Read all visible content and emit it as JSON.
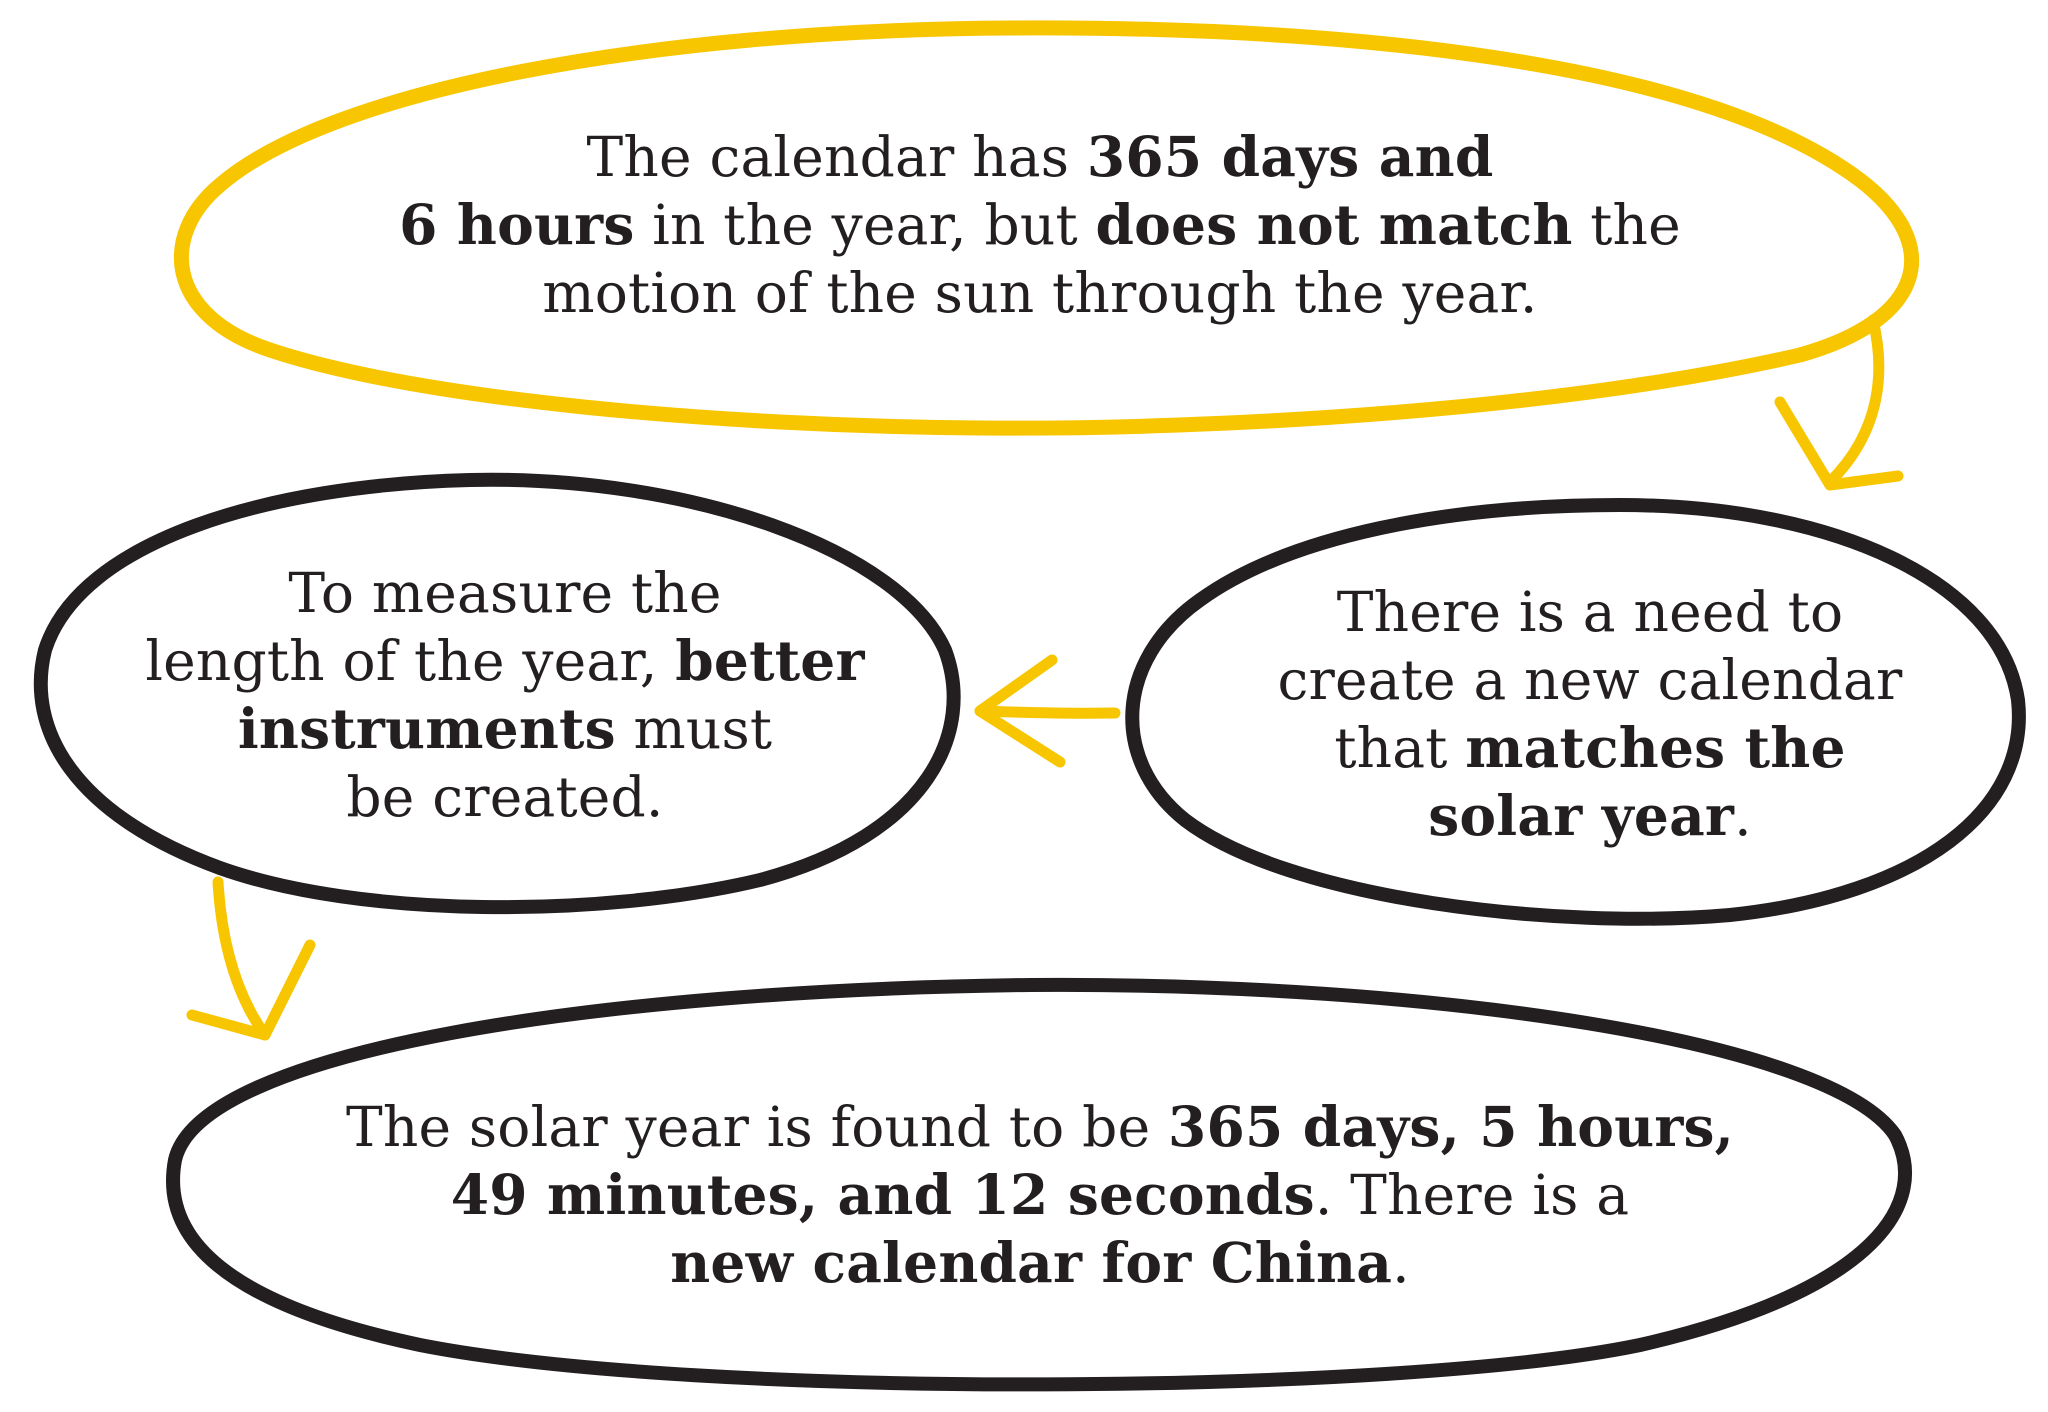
{
  "colors": {
    "accent_yellow": "#f7c600",
    "outline_black": "#231f20",
    "background": "#ffffff"
  },
  "nodes": {
    "top": {
      "line1": {
        "plain1": "The calendar has ",
        "bold1": "365 days and"
      },
      "line2": {
        "bold1": "6 hours",
        "plain1": " in the year, but ",
        "bold2": "does not match",
        "plain2": " the"
      },
      "line3": {
        "plain1": "motion of the sun through the year."
      }
    },
    "left": {
      "line1": {
        "plain1": "To measure the"
      },
      "line2": {
        "plain1": "length of the year, ",
        "bold1": "better"
      },
      "line3": {
        "bold1": "instruments",
        "plain1": " must"
      },
      "line4": {
        "plain1": "be created."
      }
    },
    "right": {
      "line1": {
        "plain1": "There is a need to"
      },
      "line2": {
        "plain1": "create a new calendar"
      },
      "line3": {
        "plain1": "that ",
        "bold1": "matches the"
      },
      "line4": {
        "bold1": "solar year",
        "plain1": "."
      }
    },
    "bottom": {
      "line1": {
        "plain1": "The solar year is found to be ",
        "bold1": "365 days, 5 hours,"
      },
      "line2": {
        "bold1": "49 minutes, and 12 seconds",
        "plain1": ". There is a"
      },
      "line3": {
        "bold1": "new calendar for China",
        "plain1": "."
      }
    }
  }
}
